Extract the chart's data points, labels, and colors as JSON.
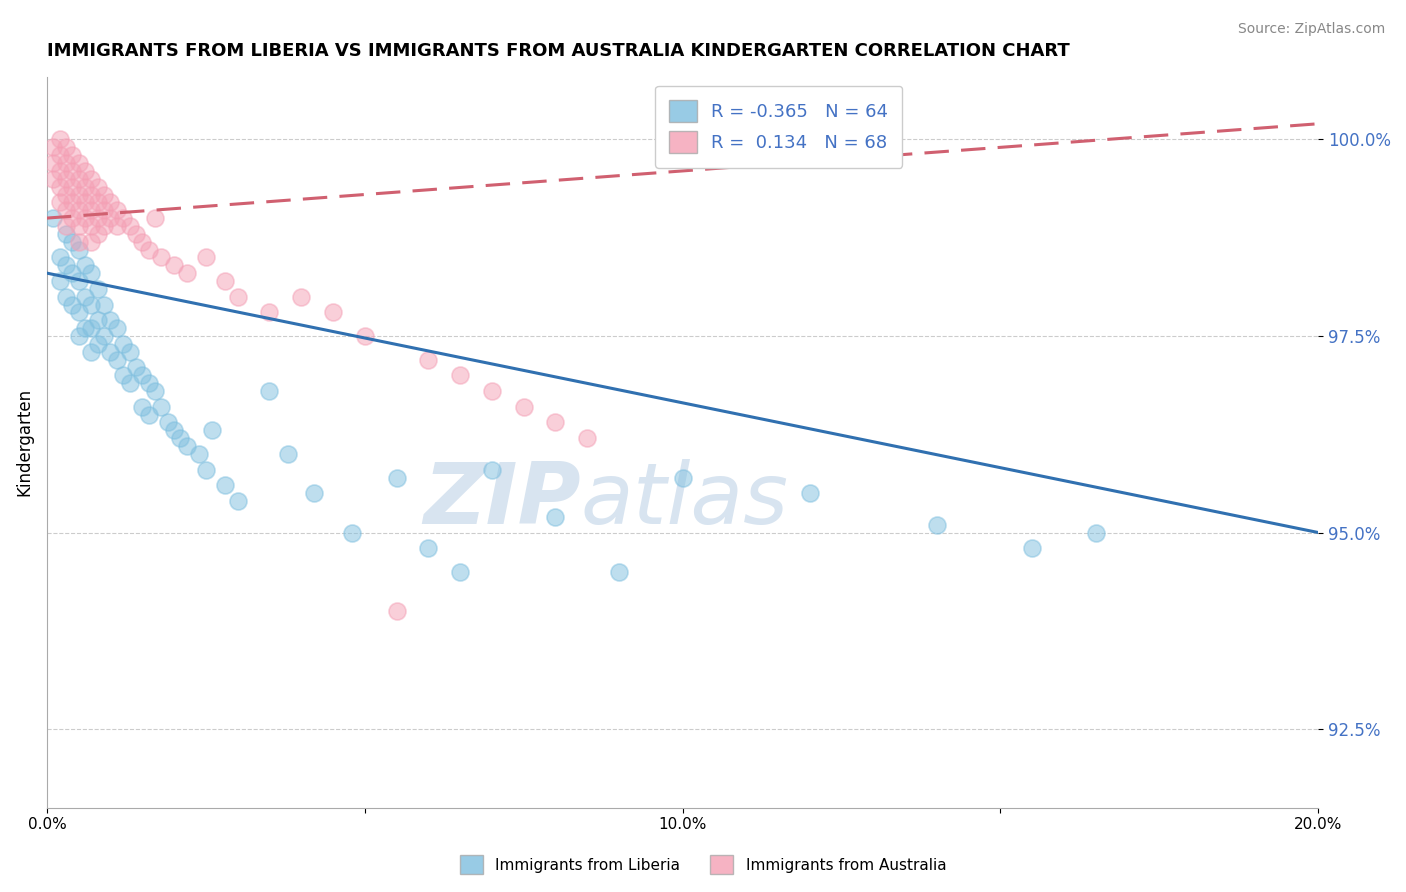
{
  "title": "IMMIGRANTS FROM LIBERIA VS IMMIGRANTS FROM AUSTRALIA KINDERGARTEN CORRELATION CHART",
  "source": "Source: ZipAtlas.com",
  "xlabel_series1": "Immigrants from Liberia",
  "xlabel_series2": "Immigrants from Australia",
  "ylabel": "Kindergarten",
  "R1": -0.365,
  "N1": 64,
  "R2": 0.134,
  "N2": 68,
  "color1": "#7fbfdf",
  "color2": "#f4a0b5",
  "trendline1_color": "#3070b0",
  "trendline2_color": "#d06070",
  "trendline2_dashed": true,
  "xlim": [
    0.0,
    0.2
  ],
  "ylim": [
    0.915,
    1.008
  ],
  "yticks": [
    0.925,
    0.95,
    0.975,
    1.0
  ],
  "ytick_labels": [
    "92.5%",
    "95.0%",
    "97.5%",
    "100.0%"
  ],
  "xticks": [
    0.0,
    0.05,
    0.1,
    0.15,
    0.2
  ],
  "xtick_labels": [
    "0.0%",
    "",
    "10.0%",
    "",
    "20.0%"
  ],
  "trendline1_x0": 0.0,
  "trendline1_y0": 0.983,
  "trendline1_x1": 0.2,
  "trendline1_y1": 0.95,
  "trendline2_x0": 0.0,
  "trendline2_y0": 0.99,
  "trendline2_x1": 0.2,
  "trendline2_y1": 1.002,
  "scatter1_x": [
    0.001,
    0.002,
    0.002,
    0.003,
    0.003,
    0.003,
    0.004,
    0.004,
    0.004,
    0.005,
    0.005,
    0.005,
    0.005,
    0.006,
    0.006,
    0.006,
    0.007,
    0.007,
    0.007,
    0.007,
    0.008,
    0.008,
    0.008,
    0.009,
    0.009,
    0.01,
    0.01,
    0.011,
    0.011,
    0.012,
    0.012,
    0.013,
    0.013,
    0.014,
    0.015,
    0.015,
    0.016,
    0.016,
    0.017,
    0.018,
    0.019,
    0.02,
    0.021,
    0.022,
    0.024,
    0.025,
    0.026,
    0.028,
    0.03,
    0.035,
    0.038,
    0.042,
    0.048,
    0.055,
    0.06,
    0.065,
    0.07,
    0.08,
    0.09,
    0.1,
    0.12,
    0.14,
    0.155,
    0.165
  ],
  "scatter1_y": [
    0.99,
    0.985,
    0.982,
    0.988,
    0.984,
    0.98,
    0.987,
    0.983,
    0.979,
    0.986,
    0.982,
    0.978,
    0.975,
    0.984,
    0.98,
    0.976,
    0.983,
    0.979,
    0.976,
    0.973,
    0.981,
    0.977,
    0.974,
    0.979,
    0.975,
    0.977,
    0.973,
    0.976,
    0.972,
    0.974,
    0.97,
    0.973,
    0.969,
    0.971,
    0.97,
    0.966,
    0.969,
    0.965,
    0.968,
    0.966,
    0.964,
    0.963,
    0.962,
    0.961,
    0.96,
    0.958,
    0.963,
    0.956,
    0.954,
    0.968,
    0.96,
    0.955,
    0.95,
    0.957,
    0.948,
    0.945,
    0.958,
    0.952,
    0.945,
    0.957,
    0.955,
    0.951,
    0.948,
    0.95
  ],
  "scatter2_x": [
    0.001,
    0.001,
    0.001,
    0.002,
    0.002,
    0.002,
    0.002,
    0.002,
    0.003,
    0.003,
    0.003,
    0.003,
    0.003,
    0.003,
    0.004,
    0.004,
    0.004,
    0.004,
    0.004,
    0.005,
    0.005,
    0.005,
    0.005,
    0.005,
    0.005,
    0.006,
    0.006,
    0.006,
    0.006,
    0.007,
    0.007,
    0.007,
    0.007,
    0.007,
    0.008,
    0.008,
    0.008,
    0.008,
    0.009,
    0.009,
    0.009,
    0.01,
    0.01,
    0.011,
    0.011,
    0.012,
    0.013,
    0.014,
    0.015,
    0.016,
    0.017,
    0.018,
    0.02,
    0.022,
    0.025,
    0.028,
    0.03,
    0.035,
    0.04,
    0.045,
    0.05,
    0.055,
    0.06,
    0.065,
    0.07,
    0.075,
    0.08,
    0.085
  ],
  "scatter2_y": [
    0.999,
    0.997,
    0.995,
    1.0,
    0.998,
    0.996,
    0.994,
    0.992,
    0.999,
    0.997,
    0.995,
    0.993,
    0.991,
    0.989,
    0.998,
    0.996,
    0.994,
    0.992,
    0.99,
    0.997,
    0.995,
    0.993,
    0.991,
    0.989,
    0.987,
    0.996,
    0.994,
    0.992,
    0.99,
    0.995,
    0.993,
    0.991,
    0.989,
    0.987,
    0.994,
    0.992,
    0.99,
    0.988,
    0.993,
    0.991,
    0.989,
    0.992,
    0.99,
    0.991,
    0.989,
    0.99,
    0.989,
    0.988,
    0.987,
    0.986,
    0.99,
    0.985,
    0.984,
    0.983,
    0.985,
    0.982,
    0.98,
    0.978,
    0.98,
    0.978,
    0.975,
    0.94,
    0.972,
    0.97,
    0.968,
    0.966,
    0.964,
    0.962
  ],
  "watermark_zip": "ZIP",
  "watermark_atlas": "atlas",
  "watermark_color": "#d8e4f0"
}
